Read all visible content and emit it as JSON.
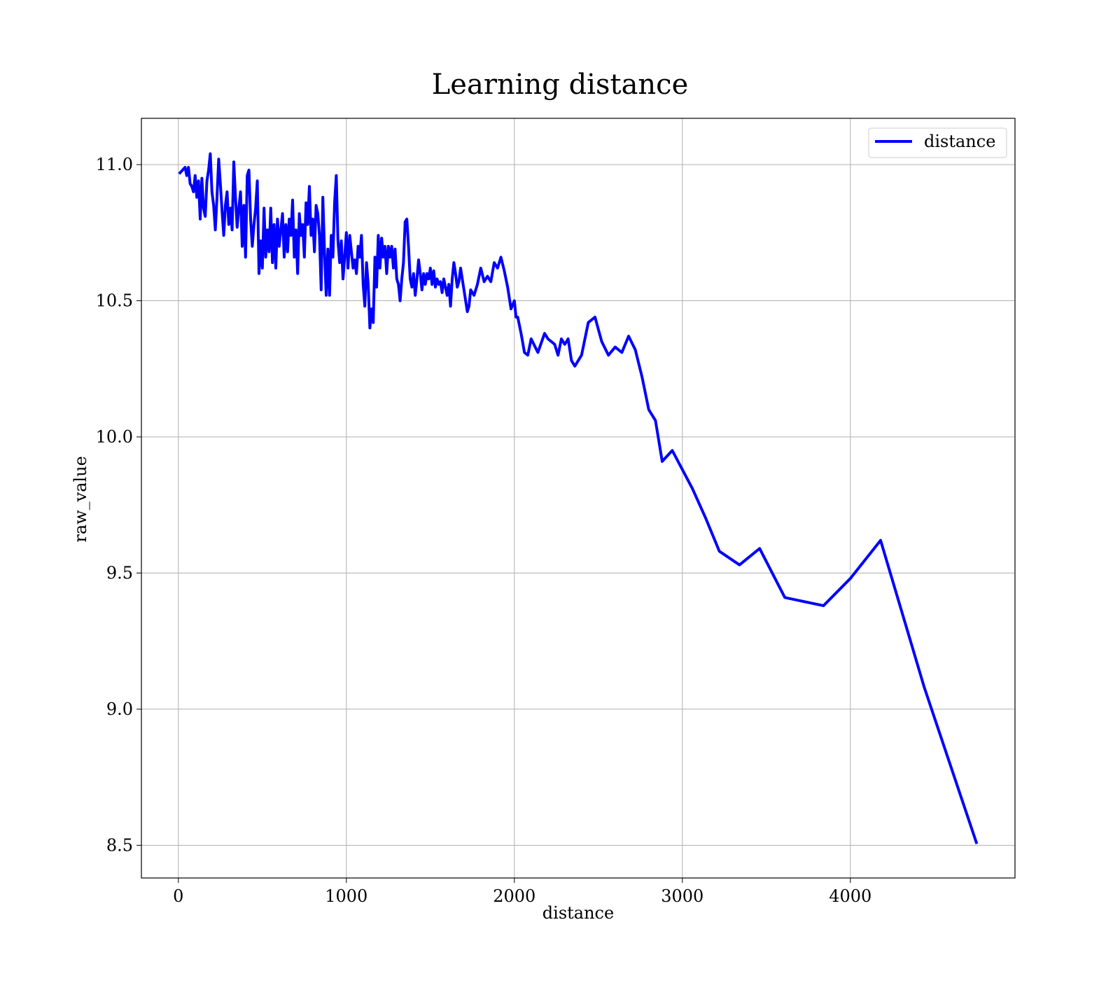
{
  "chart_data": {
    "type": "line",
    "title": "Learning distance",
    "xlabel": "distance",
    "ylabel": "raw_value",
    "xlim": [
      -220,
      4980
    ],
    "ylim": [
      8.38,
      11.17
    ],
    "xticks": [
      0,
      1000,
      2000,
      3000,
      4000
    ],
    "xtick_labels": [
      "0",
      "1000",
      "2000",
      "3000",
      "4000"
    ],
    "yticks": [
      8.5,
      9.0,
      9.5,
      10.0,
      10.5,
      11.0
    ],
    "ytick_labels": [
      "8.5",
      "9.0",
      "9.5",
      "10.0",
      "10.5",
      "11.0"
    ],
    "grid": true,
    "legend_position": "top-right",
    "series": [
      {
        "name": "distance",
        "color": "#0000ff",
        "x": [
          10,
          40,
          50,
          60,
          70,
          80,
          90,
          100,
          110,
          120,
          130,
          140,
          150,
          160,
          170,
          180,
          190,
          200,
          210,
          220,
          230,
          240,
          250,
          260,
          270,
          280,
          290,
          300,
          310,
          320,
          330,
          340,
          350,
          360,
          370,
          380,
          390,
          400,
          410,
          420,
          430,
          440,
          450,
          460,
          470,
          480,
          490,
          500,
          510,
          520,
          530,
          540,
          550,
          560,
          570,
          580,
          590,
          600,
          610,
          620,
          630,
          640,
          650,
          660,
          670,
          680,
          690,
          700,
          710,
          720,
          730,
          740,
          750,
          760,
          770,
          780,
          790,
          800,
          810,
          820,
          830,
          840,
          850,
          860,
          870,
          880,
          890,
          900,
          910,
          920,
          930,
          940,
          950,
          960,
          970,
          980,
          990,
          1000,
          1010,
          1020,
          1030,
          1040,
          1050,
          1060,
          1070,
          1080,
          1090,
          1100,
          1110,
          1120,
          1130,
          1140,
          1150,
          1160,
          1170,
          1180,
          1190,
          1200,
          1210,
          1220,
          1230,
          1240,
          1250,
          1260,
          1270,
          1280,
          1290,
          1300,
          1310,
          1320,
          1330,
          1340,
          1350,
          1360,
          1370,
          1380,
          1390,
          1400,
          1410,
          1420,
          1430,
          1440,
          1450,
          1460,
          1470,
          1480,
          1490,
          1500,
          1510,
          1520,
          1530,
          1540,
          1550,
          1560,
          1570,
          1580,
          1590,
          1600,
          1610,
          1620,
          1630,
          1640,
          1650,
          1660,
          1670,
          1680,
          1690,
          1700,
          1710,
          1720,
          1730,
          1740,
          1760,
          1780,
          1800,
          1820,
          1840,
          1860,
          1880,
          1900,
          1920,
          1940,
          1960,
          1980,
          2000,
          2010,
          2020,
          2040,
          2060,
          2080,
          2100,
          2140,
          2180,
          2200,
          2240,
          2260,
          2280,
          2300,
          2320,
          2340,
          2360,
          2400,
          2440,
          2480,
          2520,
          2560,
          2600,
          2640,
          2680,
          2720,
          2760,
          2800,
          2840,
          2880,
          2940,
          3000,
          3060,
          3140,
          3220,
          3340,
          3460,
          3610,
          3840,
          4000,
          4180,
          4440,
          4750
        ],
        "values": [
          10.97,
          10.99,
          10.96,
          10.99,
          10.93,
          10.92,
          10.9,
          10.96,
          10.88,
          10.94,
          10.8,
          10.95,
          10.84,
          10.81,
          10.94,
          10.98,
          11.04,
          10.9,
          10.85,
          10.76,
          10.88,
          11.02,
          10.93,
          10.83,
          10.74,
          10.85,
          10.9,
          10.78,
          10.84,
          10.76,
          11.01,
          10.88,
          10.77,
          10.84,
          10.9,
          10.7,
          10.85,
          10.66,
          10.96,
          10.98,
          10.8,
          10.7,
          10.78,
          10.84,
          10.94,
          10.6,
          10.72,
          10.62,
          10.84,
          10.66,
          10.76,
          10.68,
          10.84,
          10.64,
          10.78,
          10.62,
          10.8,
          10.7,
          10.76,
          10.82,
          10.66,
          10.78,
          10.68,
          10.8,
          10.74,
          10.87,
          10.66,
          10.76,
          10.6,
          10.82,
          10.74,
          10.78,
          10.66,
          10.86,
          10.78,
          10.92,
          10.74,
          10.8,
          10.68,
          10.85,
          10.82,
          10.74,
          10.54,
          10.88,
          10.68,
          10.52,
          10.69,
          10.52,
          10.74,
          10.66,
          10.86,
          10.96,
          10.72,
          10.64,
          10.72,
          10.58,
          10.66,
          10.75,
          10.62,
          10.74,
          10.68,
          10.62,
          10.65,
          10.6,
          10.7,
          10.66,
          10.74,
          10.56,
          10.48,
          10.64,
          10.56,
          10.4,
          10.47,
          10.42,
          10.66,
          10.55,
          10.74,
          10.62,
          10.73,
          10.66,
          10.7,
          10.6,
          10.7,
          10.66,
          10.7,
          10.62,
          10.69,
          10.58,
          10.56,
          10.5,
          10.58,
          10.64,
          10.79,
          10.8,
          10.7,
          10.58,
          10.55,
          10.6,
          10.52,
          10.58,
          10.65,
          10.6,
          10.54,
          10.6,
          10.56,
          10.6,
          10.58,
          10.62,
          10.56,
          10.61,
          10.55,
          10.58,
          10.56,
          10.57,
          10.53,
          10.58,
          10.55,
          10.52,
          10.56,
          10.48,
          10.58,
          10.64,
          10.6,
          10.55,
          10.57,
          10.62,
          10.58,
          10.54,
          10.5,
          10.46,
          10.48,
          10.54,
          10.52,
          10.56,
          10.62,
          10.57,
          10.59,
          10.57,
          10.64,
          10.62,
          10.66,
          10.61,
          10.55,
          10.47,
          10.5,
          10.44,
          10.44,
          10.38,
          10.31,
          10.3,
          10.36,
          10.31,
          10.38,
          10.36,
          10.34,
          10.3,
          10.36,
          10.34,
          10.36,
          10.28,
          10.26,
          10.3,
          10.42,
          10.44,
          10.35,
          10.3,
          10.33,
          10.31,
          10.37,
          10.32,
          10.22,
          10.1,
          10.06,
          9.91,
          9.95,
          9.88,
          9.81,
          9.7,
          9.58,
          9.53,
          9.59,
          9.41,
          9.38,
          9.48,
          9.62,
          9.08,
          8.51
        ]
      }
    ]
  }
}
